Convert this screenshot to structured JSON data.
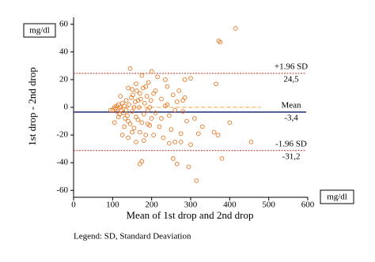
{
  "chart_data": {
    "type": "scatter",
    "x_label": "Mean of 1st drop and 2nd drop",
    "y_label": "1st drop - 2nd drop",
    "x_unit": "mg/dl",
    "y_unit": "mg/dl",
    "footnote": "Legend: SD, Standard Deaviation",
    "xlim": [
      0,
      600
    ],
    "xticks": [
      0,
      100,
      200,
      300,
      400,
      500,
      600
    ],
    "ylim": [
      -65,
      65
    ],
    "yticks": [
      -60,
      -40,
      -20,
      0,
      20,
      40,
      60
    ],
    "point_color": "#e87722",
    "lines": [
      {
        "name": "+1.96 SD",
        "value": 24.5,
        "value_label": "24,5",
        "color": "#b5352a",
        "style": "dotted"
      },
      {
        "name": "Mean",
        "value": -3.4,
        "value_label": "-3,4",
        "color": "#1f2a7a",
        "style": "solid"
      },
      {
        "name": "-1.96 SD",
        "value": -31.2,
        "value_label": "-31,2",
        "color": "#b5352a",
        "style": "dotted"
      },
      {
        "value": 0,
        "color": "#f0a040",
        "style": "dashed"
      }
    ],
    "x": [
      100,
      105,
      108,
      110,
      112,
      115,
      118,
      120,
      122,
      125,
      128,
      130,
      132,
      135,
      138,
      140,
      142,
      145,
      148,
      150,
      152,
      155,
      158,
      160,
      162,
      165,
      168,
      170,
      172,
      175,
      178,
      180,
      182,
      185,
      188,
      190,
      192,
      195,
      198,
      200,
      205,
      210,
      215,
      220,
      225,
      230,
      235,
      240,
      245,
      250,
      255,
      260,
      265,
      270,
      275,
      280,
      285,
      290,
      120,
      130,
      140,
      150,
      160,
      170,
      180,
      190,
      145,
      175,
      200,
      235,
      285,
      300,
      185,
      210,
      125,
      105,
      95,
      115,
      135,
      155,
      165,
      195,
      205,
      225,
      245,
      275,
      300,
      175,
      170,
      255,
      265,
      295,
      315,
      372,
      376,
      415,
      365,
      400,
      360,
      370,
      455,
      380,
      320,
      310,
      330,
      240,
      260,
      280,
      150,
      160,
      140
    ],
    "y": [
      -2,
      0,
      -1,
      1,
      -3,
      2,
      -5,
      0,
      -2,
      3,
      -4,
      1,
      -8,
      5,
      -6,
      -10,
      2,
      -12,
      7,
      -3,
      9,
      -15,
      4,
      -7,
      12,
      -9,
      0,
      -18,
      6,
      -11,
      14,
      -5,
      3,
      -20,
      8,
      -2,
      18,
      -13,
      5,
      -8,
      10,
      -4,
      22,
      -14,
      6,
      -22,
      1,
      15,
      -6,
      -16,
      9,
      -25,
      4,
      12,
      -19,
      -3,
      7,
      -10,
      8,
      -14,
      14,
      -18,
      17,
      10,
      -24,
      -12,
      28,
      23,
      26,
      20,
      20,
      21,
      15,
      12,
      -20,
      -11,
      -2,
      -7,
      -2,
      0,
      5,
      0,
      -20,
      -8,
      -26,
      -25,
      -27,
      -39,
      -41,
      -37,
      -41,
      -43,
      -53,
      48,
      47,
      57,
      17,
      -11,
      -18,
      -20,
      -25,
      -37,
      -19,
      -8,
      -14,
      2,
      -2,
      5,
      13,
      -25,
      -22
    ]
  }
}
